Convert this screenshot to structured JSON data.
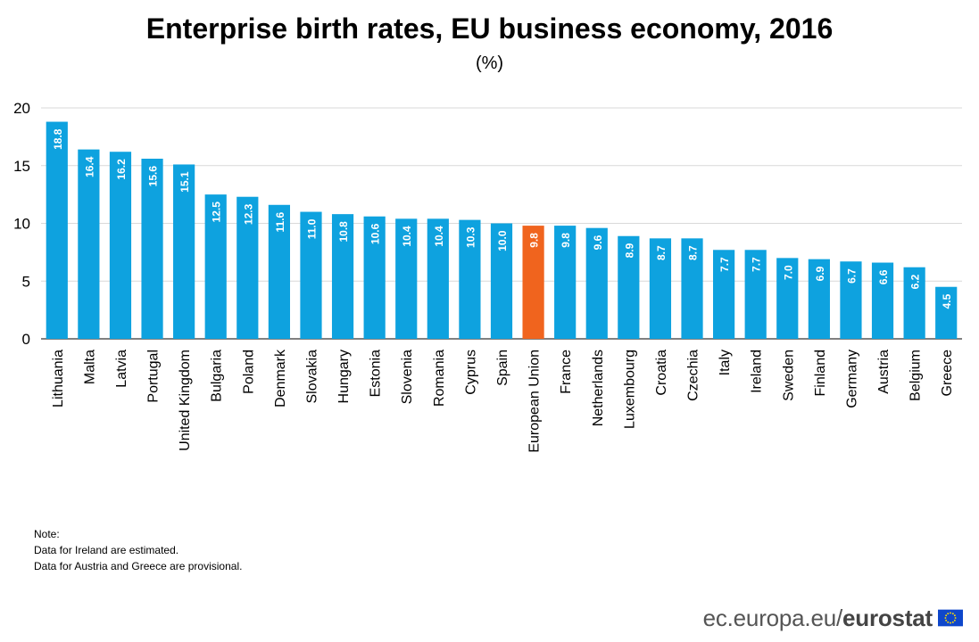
{
  "page": {
    "title": "Enterprise birth rates, EU business economy, 2016",
    "subtitle": "(%)"
  },
  "colors": {
    "bar": "#0ea2df",
    "highlight": "#f0641e",
    "grid": "#d9d9d9",
    "axis": "#000000",
    "value_label": "#ffffff",
    "flag_blue": "#0e47cb",
    "flag_star": "#ffdd00"
  },
  "chart_data": {
    "type": "bar",
    "title": "Enterprise birth rates, EU business economy, 2016",
    "subtitle": "(%)",
    "xlabel": "",
    "ylabel": "",
    "ylim": [
      0,
      20
    ],
    "yticks": [
      0,
      5,
      10,
      15,
      20
    ],
    "grid": true,
    "categories": [
      "Lithuania",
      "Malta",
      "Latvia",
      "Portugal",
      "United Kingdom",
      "Bulgaria",
      "Poland",
      "Denmark",
      "Slovakia",
      "Hungary",
      "Estonia",
      "Slovenia",
      "Romania",
      "Cyprus",
      "Spain",
      "European Union",
      "France",
      "Netherlands",
      "Luxembourg",
      "Croatia",
      "Czechia",
      "Italy",
      "Ireland",
      "Sweden",
      "Finland",
      "Germany",
      "Austria",
      "Belgium",
      "Greece"
    ],
    "values": [
      18.8,
      16.4,
      16.2,
      15.6,
      15.1,
      12.5,
      12.3,
      11.6,
      11.0,
      10.8,
      10.6,
      10.4,
      10.4,
      10.3,
      10.0,
      9.8,
      9.8,
      9.6,
      8.9,
      8.7,
      8.7,
      7.7,
      7.7,
      7.0,
      6.9,
      6.7,
      6.6,
      6.2,
      4.5
    ],
    "labels": [
      "18.8",
      "16.4",
      "16.2",
      "15.6",
      "15.1",
      "12.5",
      "12.3",
      "11.6",
      "11.0",
      "10.8",
      "10.6",
      "10.4",
      "10.4",
      "10.3",
      "10.0",
      "9.8",
      "9.8",
      "9.6",
      "8.9",
      "8.7",
      "8.7",
      "7.7",
      "7.7",
      "7.0",
      "6.9",
      "6.7",
      "6.6",
      "6.2",
      "4.5"
    ],
    "highlight_category": "European Union"
  },
  "notes": {
    "heading": "Note:",
    "lines": [
      "Data for Ireland are estimated.",
      "Data for Austria  and Greece are provisional."
    ]
  },
  "footer": {
    "domain": "ec.europa.eu/",
    "brand": "eurostat",
    "logo_icon": "eu-flag-icon"
  }
}
